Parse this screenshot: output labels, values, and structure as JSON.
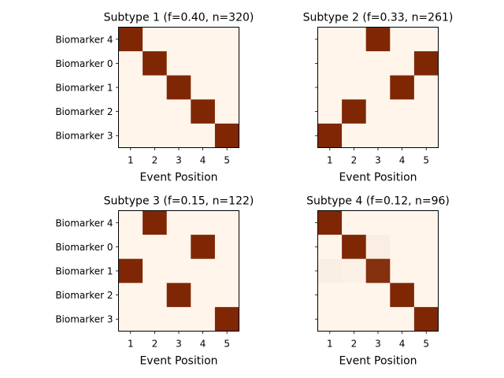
{
  "chart_data": [
    {
      "type": "heatmap",
      "title": "Subtype 1 (f=0.40, n=320)",
      "xlabel": "Event Position",
      "ylabel": "",
      "x_categories": [
        "1",
        "2",
        "3",
        "4",
        "5"
      ],
      "y_categories": [
        "Biomarker 4",
        "Biomarker 0",
        "Biomarker 1",
        "Biomarker 2",
        "Biomarker 3"
      ],
      "show_y_tick_labels": true,
      "values": [
        [
          1,
          0,
          0,
          0,
          0
        ],
        [
          0,
          1,
          0,
          0,
          0
        ],
        [
          0,
          0,
          1,
          0,
          0
        ],
        [
          0,
          0,
          0,
          1,
          0
        ],
        [
          0,
          0,
          0,
          0,
          1
        ]
      ]
    },
    {
      "type": "heatmap",
      "title": "Subtype 2 (f=0.33, n=261)",
      "xlabel": "Event Position",
      "ylabel": "",
      "x_categories": [
        "1",
        "2",
        "3",
        "4",
        "5"
      ],
      "y_categories": [
        "Biomarker 4",
        "Biomarker 0",
        "Biomarker 1",
        "Biomarker 2",
        "Biomarker 3"
      ],
      "show_y_tick_labels": false,
      "values": [
        [
          0,
          0,
          1,
          0,
          0
        ],
        [
          0,
          0,
          0,
          0,
          1
        ],
        [
          0,
          0,
          0,
          1,
          0
        ],
        [
          0,
          1,
          0,
          0,
          0
        ],
        [
          1,
          0,
          0,
          0,
          0
        ]
      ]
    },
    {
      "type": "heatmap",
      "title": "Subtype 3 (f=0.15, n=122)",
      "xlabel": "Event Position",
      "ylabel": "",
      "x_categories": [
        "1",
        "2",
        "3",
        "4",
        "5"
      ],
      "y_categories": [
        "Biomarker 4",
        "Biomarker 0",
        "Biomarker 1",
        "Biomarker 2",
        "Biomarker 3"
      ],
      "show_y_tick_labels": true,
      "values": [
        [
          0,
          1,
          0,
          0,
          0
        ],
        [
          0,
          0,
          0,
          1,
          0
        ],
        [
          1,
          0,
          0,
          0,
          0
        ],
        [
          0,
          0,
          1,
          0,
          0
        ],
        [
          0,
          0,
          0,
          0,
          1
        ]
      ]
    },
    {
      "type": "heatmap",
      "title": "Subtype 4 (f=0.12, n=96)",
      "xlabel": "Event Position",
      "ylabel": "",
      "x_categories": [
        "1",
        "2",
        "3",
        "4",
        "5"
      ],
      "y_categories": [
        "Biomarker 4",
        "Biomarker 0",
        "Biomarker 1",
        "Biomarker 2",
        "Biomarker 3"
      ],
      "show_y_tick_labels": false,
      "values": [
        [
          1,
          0,
          0,
          0,
          0
        ],
        [
          0,
          1,
          0.04,
          0,
          0
        ],
        [
          0.03,
          0.02,
          0.96,
          0,
          0
        ],
        [
          0,
          0,
          0,
          1,
          0
        ],
        [
          0,
          0,
          0,
          0,
          1
        ]
      ]
    }
  ],
  "colors": {
    "low": "#fff5eb",
    "high": "#7f2704"
  }
}
